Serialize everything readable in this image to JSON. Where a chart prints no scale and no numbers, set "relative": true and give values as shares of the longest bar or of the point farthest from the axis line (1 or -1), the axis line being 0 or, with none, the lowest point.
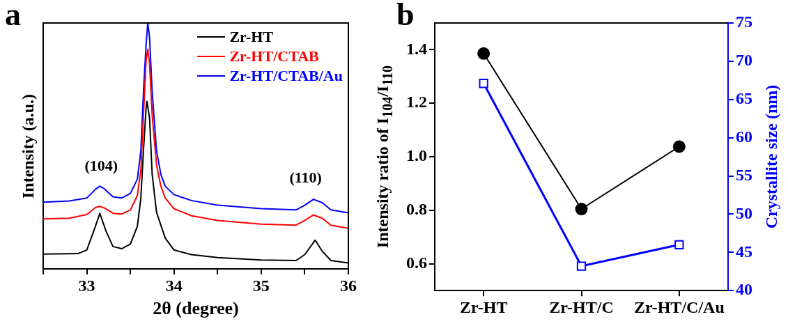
{
  "chart_data": [
    {
      "type": "line",
      "title": "a",
      "xlabel": "2θ (degree)",
      "ylabel": "Intensity (a.u.)",
      "relative": true,
      "xlim": [
        32.5,
        36
      ],
      "xticks": [
        {
          "value": 32.5,
          "label": null
        },
        33,
        {
          "value": 33.5,
          "label": null
        },
        34,
        {
          "value": 34.5,
          "label": null
        },
        35,
        {
          "value": 35.5,
          "label": null
        },
        36
      ],
      "tick_labels": "x",
      "legend": "top right",
      "marker": "none",
      "annotations": [
        "(104)",
        "(110)"
      ],
      "series": [
        {
          "name": "Zr-HT",
          "color": "#000000",
          "x": [
            32.5,
            32.9,
            33.0,
            33.08,
            33.15,
            33.22,
            33.3,
            33.4,
            33.5,
            33.58,
            33.62,
            33.65,
            33.68,
            33.69,
            33.72,
            33.75,
            33.8,
            33.9,
            34.0,
            34.2,
            34.5,
            35.0,
            35.4,
            35.5,
            35.62,
            35.7,
            35.8,
            36
          ],
          "values": [
            0.06,
            0.062,
            0.077,
            0.154,
            0.226,
            0.154,
            0.091,
            0.082,
            0.101,
            0.173,
            0.288,
            0.48,
            0.653,
            0.681,
            0.614,
            0.384,
            0.23,
            0.125,
            0.077,
            0.058,
            0.046,
            0.036,
            0.034,
            0.058,
            0.117,
            0.072,
            0.034,
            0.024
          ]
        },
        {
          "name": "Zr-HT/CTAB",
          "color": "#ff0000",
          "x": [
            32.5,
            32.8,
            33.0,
            33.1,
            33.15,
            33.2,
            33.3,
            33.4,
            33.5,
            33.58,
            33.62,
            33.65,
            33.68,
            33.7,
            33.72,
            33.75,
            33.8,
            33.85,
            33.9,
            34.0,
            34.2,
            34.5,
            35.0,
            35.4,
            35.5,
            35.6,
            35.7,
            35.8,
            36
          ],
          "values": [
            0.203,
            0.206,
            0.221,
            0.25,
            0.254,
            0.248,
            0.226,
            0.223,
            0.24,
            0.298,
            0.403,
            0.624,
            0.845,
            0.894,
            0.835,
            0.624,
            0.422,
            0.336,
            0.288,
            0.245,
            0.216,
            0.197,
            0.182,
            0.178,
            0.197,
            0.219,
            0.206,
            0.178,
            0.165
          ]
        },
        {
          "name": "Zr-HT/CTAB/Au",
          "color": "#0000ff",
          "x": [
            32.5,
            32.8,
            33.0,
            33.1,
            33.15,
            33.2,
            33.3,
            33.4,
            33.5,
            33.58,
            33.62,
            33.65,
            33.68,
            33.7,
            33.72,
            33.75,
            33.8,
            33.85,
            33.9,
            34.0,
            34.2,
            34.5,
            35.0,
            35.4,
            35.5,
            35.6,
            35.7,
            35.8,
            36
          ],
          "values": [
            0.271,
            0.276,
            0.288,
            0.324,
            0.336,
            0.326,
            0.293,
            0.288,
            0.307,
            0.365,
            0.48,
            0.72,
            0.912,
            1,
            0.94,
            0.72,
            0.48,
            0.384,
            0.336,
            0.302,
            0.278,
            0.259,
            0.245,
            0.24,
            0.259,
            0.283,
            0.269,
            0.24,
            0.228
          ]
        }
      ]
    },
    {
      "type": "line",
      "title": "b",
      "ylabel": "Intensity ratio of I$_{104}$/I$_{110}$",
      "y2label": "Crystallite size (nm)",
      "categories": [
        "Zr-HT",
        "Zr-HT/C",
        "Zr-HT/C/Au"
      ],
      "ylim": [
        0.5,
        1.5
      ],
      "yticks": [
        0.6,
        0.8,
        {
          "value": 1.0,
          "label": "1.0"
        },
        1.2,
        1.4
      ],
      "y2lim": [
        40,
        75
      ],
      "y2ticks": [
        40,
        45,
        50,
        55,
        60,
        65,
        70,
        75
      ],
      "series": [
        {
          "color": "#000000",
          "marker": "circle",
          "values": [
            1.386,
            0.805,
            1.038
          ]
        },
        {
          "color": "#0000ff",
          "marker": "square",
          "axis": "y2",
          "values": [
            67.1,
            43.2,
            46.0
          ]
        }
      ]
    }
  ]
}
